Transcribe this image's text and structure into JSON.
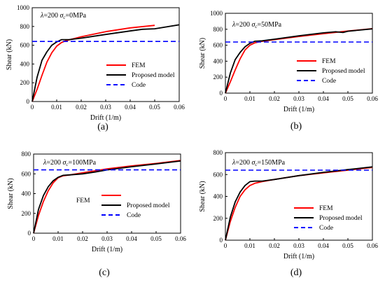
{
  "chart_data": [
    {
      "id": "a",
      "type": "line",
      "panel_label": "(a)",
      "annotation": "λ=200  σc=0MPa",
      "annotation_parts": {
        "lambda": "λ=200",
        "sigma_symbol": "σ",
        "sigma_sub": "c",
        "sigma_value": "=0MPa"
      },
      "xlabel": "Drift (1/m)",
      "ylabel": "Shear (kN)",
      "xlim": [
        0,
        0.06
      ],
      "ylim": [
        0,
        1000
      ],
      "xticks": [
        0,
        0.01,
        0.02,
        0.03,
        0.04,
        0.05,
        0.06
      ],
      "xtick_labels": [
        "0",
        "0.01",
        "0.02",
        "0.03",
        "0.04",
        "0.05",
        "0.06"
      ],
      "yticks": [
        0,
        200,
        400,
        600,
        800,
        1000
      ],
      "ytick_labels": [
        "0",
        "200",
        "400",
        "600",
        "800",
        "1000"
      ],
      "legend_placement": "center-right",
      "series": [
        {
          "name": "FEM",
          "color": "#ff0000",
          "style": "solid",
          "x": [
            0,
            0.002,
            0.004,
            0.006,
            0.008,
            0.01,
            0.012,
            0.014,
            0.02,
            0.03,
            0.04,
            0.05
          ],
          "y": [
            0,
            130,
            280,
            420,
            520,
            590,
            630,
            650,
            690,
            745,
            785,
            812
          ]
        },
        {
          "name": "Proposed model",
          "color": "#000000",
          "style": "solid",
          "x": [
            0,
            0.002,
            0.004,
            0.006,
            0.008,
            0.01,
            0.012,
            0.015,
            0.02,
            0.03,
            0.04,
            0.045,
            0.05,
            0.06
          ],
          "y": [
            0,
            260,
            440,
            530,
            600,
            635,
            660,
            660,
            675,
            715,
            752,
            770,
            775,
            818
          ]
        },
        {
          "name": "Code",
          "color": "#0000ff",
          "style": "dashed",
          "x": [
            0,
            0.06
          ],
          "y": [
            640,
            640
          ]
        }
      ]
    },
    {
      "id": "b",
      "type": "line",
      "panel_label": "(b)",
      "annotation": "λ=200  σc=50MPa",
      "annotation_parts": {
        "lambda": "λ=200",
        "sigma_symbol": "σ",
        "sigma_sub": "c",
        "sigma_value": "=50MPa"
      },
      "xlabel": "Drift (1/m)",
      "ylabel": "Shear (kN)",
      "xlim": [
        0,
        0.06
      ],
      "ylim": [
        0,
        1000
      ],
      "xticks": [
        0,
        0.01,
        0.02,
        0.03,
        0.04,
        0.05,
        0.06
      ],
      "xtick_labels": [
        "0",
        "0.01",
        "0.02",
        "0.03",
        "0.04",
        "0.05",
        "0.06"
      ],
      "yticks": [
        0,
        200,
        400,
        600,
        800,
        1000
      ],
      "ytick_labels": [
        "0",
        "200",
        "400",
        "600",
        "800",
        "1000"
      ],
      "legend_placement": "center-right",
      "series": [
        {
          "name": "FEM",
          "color": "#ff0000",
          "style": "solid",
          "x": [
            0,
            0.002,
            0.004,
            0.006,
            0.008,
            0.01,
            0.012,
            0.014,
            0.02,
            0.03,
            0.04,
            0.05,
            0.06
          ],
          "y": [
            0,
            140,
            290,
            430,
            540,
            600,
            630,
            645,
            670,
            710,
            745,
            778,
            808
          ]
        },
        {
          "name": "Proposed model",
          "color": "#000000",
          "style": "solid",
          "x": [
            0,
            0.002,
            0.004,
            0.006,
            0.008,
            0.01,
            0.012,
            0.015,
            0.02,
            0.03,
            0.04,
            0.045,
            0.048,
            0.05,
            0.06
          ],
          "y": [
            0,
            250,
            420,
            510,
            580,
            625,
            650,
            655,
            675,
            718,
            755,
            768,
            760,
            775,
            805
          ]
        },
        {
          "name": "Code",
          "color": "#0000ff",
          "style": "dashed",
          "x": [
            0,
            0.06
          ],
          "y": [
            640,
            640
          ]
        }
      ]
    },
    {
      "id": "c",
      "type": "line",
      "panel_label": "(c)",
      "annotation": "λ=200  σc=100MPa",
      "annotation_parts": {
        "lambda": "λ=200",
        "sigma_symbol": "σ",
        "sigma_sub": "c",
        "sigma_value": "=100MPa"
      },
      "xlabel": "Drift (1/m)",
      "ylabel": "Shear (kN)",
      "xlim": [
        0,
        0.06
      ],
      "ylim": [
        0,
        800
      ],
      "xticks": [
        0,
        0.01,
        0.02,
        0.03,
        0.04,
        0.05,
        0.06
      ],
      "xtick_labels": [
        "0",
        "0.01",
        "0.02",
        "0.03",
        "0.04",
        "0.05",
        "0.06"
      ],
      "yticks": [
        0,
        200,
        400,
        600,
        800
      ],
      "ytick_labels": [
        "0",
        "200",
        "400",
        "600",
        "800"
      ],
      "legend_placement": "center-right",
      "series": [
        {
          "name": "FEM",
          "color": "#ff0000",
          "style": "solid",
          "x": [
            0,
            0.002,
            0.004,
            0.006,
            0.008,
            0.01,
            0.012,
            0.015,
            0.02,
            0.03,
            0.04,
            0.05,
            0.06
          ],
          "y": [
            0,
            180,
            320,
            430,
            510,
            560,
            580,
            590,
            610,
            650,
            680,
            705,
            735
          ]
        },
        {
          "name": "Proposed model",
          "color": "#000000",
          "style": "solid",
          "x": [
            0,
            0.002,
            0.004,
            0.006,
            0.008,
            0.01,
            0.012,
            0.015,
            0.02,
            0.025,
            0.03,
            0.04,
            0.05,
            0.06
          ],
          "y": [
            0,
            240,
            380,
            470,
            530,
            565,
            585,
            590,
            600,
            618,
            640,
            672,
            700,
            730
          ]
        },
        {
          "name": "Code",
          "color": "#0000ff",
          "style": "dashed",
          "x": [
            0,
            0.06
          ],
          "y": [
            640,
            640
          ]
        }
      ]
    },
    {
      "id": "d",
      "type": "line",
      "panel_label": "(d)",
      "annotation": "λ=200  σc=150MPa",
      "annotation_parts": {
        "lambda": "λ=200",
        "sigma_symbol": "σ",
        "sigma_sub": "c",
        "sigma_value": "=150MPa"
      },
      "xlabel": "Drift (1/m)",
      "ylabel": "Shear (kN)",
      "xlim": [
        0,
        0.06
      ],
      "ylim": [
        0,
        800
      ],
      "xticks": [
        0,
        0.01,
        0.02,
        0.03,
        0.04,
        0.05,
        0.06
      ],
      "xtick_labels": [
        "0",
        "0.01",
        "0.02",
        "0.03",
        "0.04",
        "0.05",
        "0.06"
      ],
      "yticks": [
        0,
        200,
        400,
        600,
        800
      ],
      "ytick_labels": [
        "0",
        "200",
        "400",
        "600",
        "800"
      ],
      "legend_placement": "center-right",
      "series": [
        {
          "name": "FEM",
          "color": "#ff0000",
          "style": "solid",
          "x": [
            0,
            0.002,
            0.004,
            0.006,
            0.008,
            0.01,
            0.012,
            0.015,
            0.02,
            0.03,
            0.04,
            0.05,
            0.06
          ],
          "y": [
            0,
            170,
            300,
            400,
            460,
            500,
            520,
            535,
            555,
            590,
            615,
            640,
            665
          ]
        },
        {
          "name": "Proposed model",
          "color": "#000000",
          "style": "solid",
          "x": [
            0,
            0.002,
            0.004,
            0.006,
            0.008,
            0.01,
            0.012,
            0.015,
            0.02,
            0.03,
            0.04,
            0.05,
            0.06
          ],
          "y": [
            0,
            210,
            350,
            440,
            500,
            535,
            540,
            540,
            555,
            590,
            620,
            645,
            670
          ]
        },
        {
          "name": "Code",
          "color": "#0000ff",
          "style": "dashed",
          "x": [
            0,
            0.06
          ],
          "y": [
            640,
            640
          ]
        }
      ]
    }
  ]
}
